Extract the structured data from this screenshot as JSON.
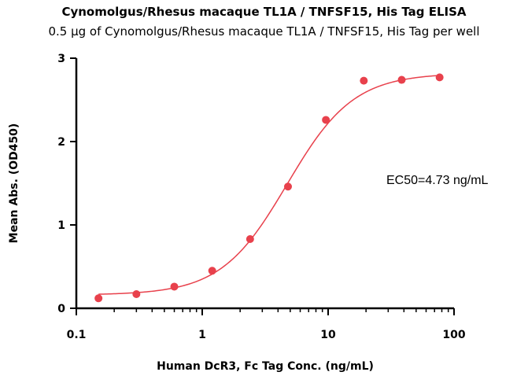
{
  "chart_data": {
    "type": "scatter",
    "title": "Cynomolgus/Rhesus macaque TL1A / TNFSF15, His Tag  ELISA",
    "subtitle": "0.5 μg of Cynomolgus/Rhesus macaque TL1A / TNFSF15, His Tag  per well",
    "xlabel": "Human DcR3, Fc Tag Conc. (ng/mL)",
    "ylabel": "Mean Abs. (OD450)",
    "x_scale": "log",
    "xlim": [
      0.1,
      100
    ],
    "ylim": [
      0,
      3
    ],
    "x_ticks": [
      "0.1",
      "1",
      "10",
      "100"
    ],
    "y_ticks": [
      "0",
      "1",
      "2",
      "3"
    ],
    "grid": false,
    "legend": "none",
    "series": [
      {
        "x": [
          0.15,
          0.3,
          0.6,
          1.2,
          2.4,
          4.8,
          9.6,
          19.2,
          38.4,
          76.8
        ],
        "y": [
          0.12,
          0.17,
          0.26,
          0.45,
          0.83,
          1.46,
          2.26,
          2.73,
          2.74,
          2.77
        ],
        "color": "#e8414c"
      }
    ],
    "fit_curve": {
      "bottom": 0.16,
      "top": 2.82,
      "ec50": 4.73,
      "hill_slope": 1.65,
      "color": "#e8414c"
    },
    "annotations": [
      {
        "text": "EC50=4.73 ng/mL"
      }
    ]
  }
}
